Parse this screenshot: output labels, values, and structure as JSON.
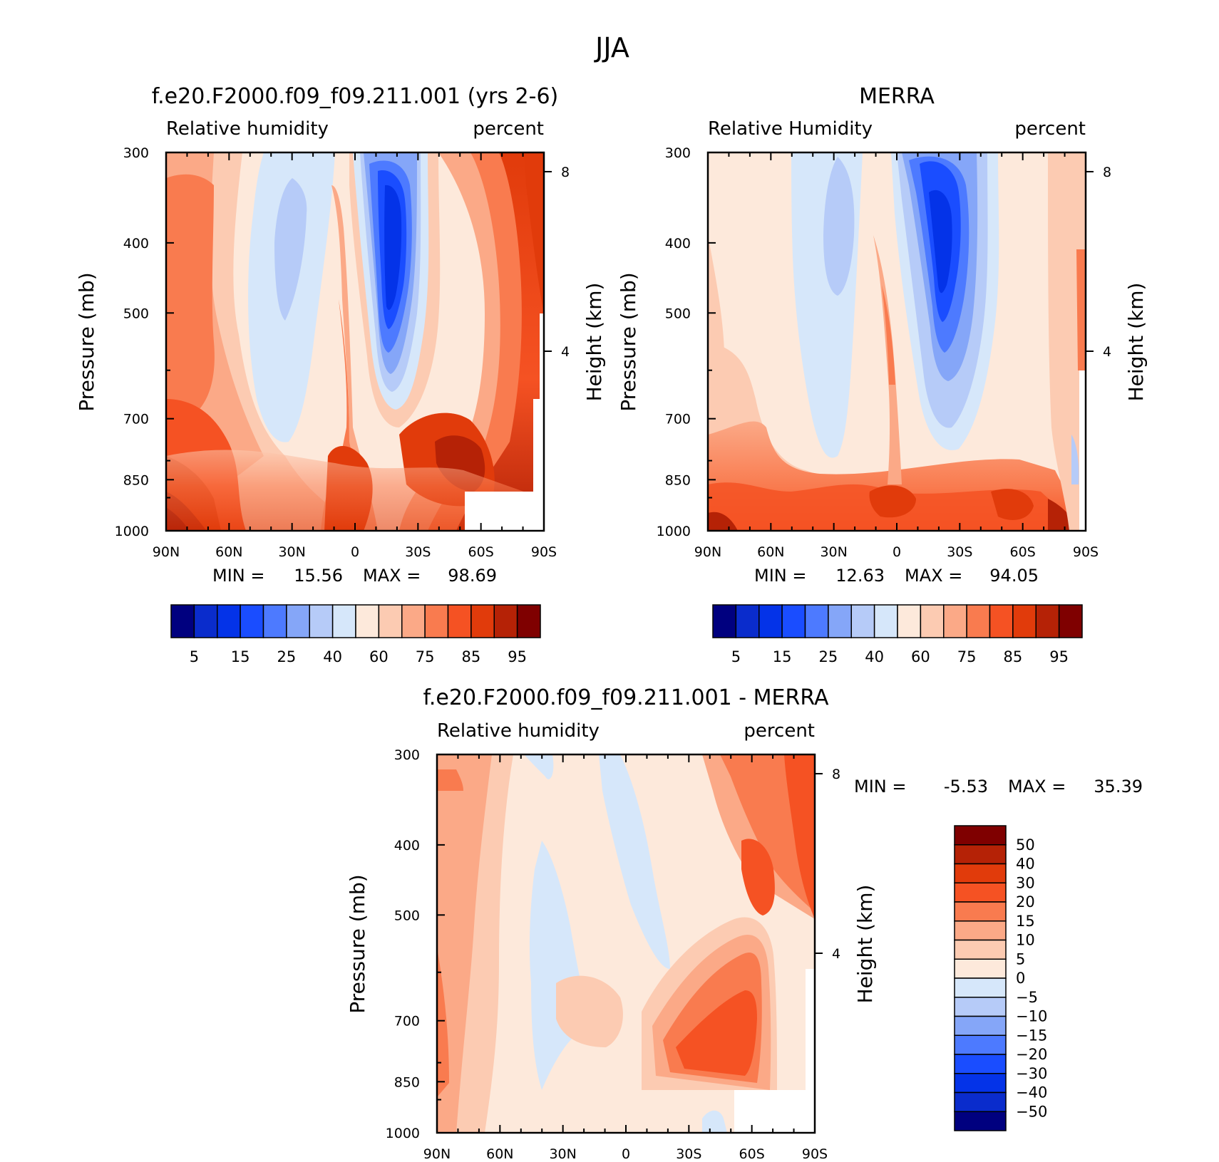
{
  "figure": {
    "title": "JJA"
  },
  "chart_data": [
    {
      "type": "heatmap",
      "id": "panel-model",
      "title": "f.e20.F2000.f09_f09.211.001 (yrs 2-6)",
      "left_label": "Relative humidity",
      "right_label": "percent",
      "xlabel": "",
      "ylabel": "Pressure (mb)",
      "y2label": "Height (km)",
      "x_ticks": [
        "90N",
        "60N",
        "30N",
        "0",
        "30S",
        "60S",
        "90S"
      ],
      "y_ticks": [
        "300",
        "400",
        "500",
        "700",
        "850",
        "1000"
      ],
      "y2_ticks": [
        "8",
        "4"
      ],
      "min_text": "MIN =",
      "min_value": "15.56",
      "max_text": "MAX =",
      "max_value": "98.69",
      "colorbar": {
        "orientation": "horizontal",
        "labels": [
          "5",
          "15",
          "25",
          "40",
          "60",
          "75",
          "85",
          "95"
        ],
        "colors": [
          "#00007f",
          "#0a2ccc",
          "#0433e8",
          "#1a4dff",
          "#4d7aff",
          "#85a6f8",
          "#b6cbf8",
          "#d6e7fa",
          "#fde9db",
          "#fccbb2",
          "#fba987",
          "#f97b4f",
          "#f55223",
          "#e13b0b",
          "#b52206",
          "#7f0000"
        ]
      }
    },
    {
      "type": "heatmap",
      "id": "panel-merra",
      "title": "MERRA",
      "left_label": "Relative Humidity",
      "right_label": "percent",
      "xlabel": "",
      "ylabel": "Pressure (mb)",
      "y2label": "Height (km)",
      "x_ticks": [
        "90N",
        "60N",
        "30N",
        "0",
        "30S",
        "60S",
        "90S"
      ],
      "y_ticks": [
        "300",
        "400",
        "500",
        "700",
        "850",
        "1000"
      ],
      "y2_ticks": [
        "8",
        "4"
      ],
      "min_text": "MIN =",
      "min_value": "12.63",
      "max_text": "MAX =",
      "max_value": "94.05",
      "colorbar": {
        "orientation": "horizontal",
        "labels": [
          "5",
          "15",
          "25",
          "40",
          "60",
          "75",
          "85",
          "95"
        ],
        "colors": [
          "#00007f",
          "#0a2ccc",
          "#0433e8",
          "#1a4dff",
          "#4d7aff",
          "#85a6f8",
          "#b6cbf8",
          "#d6e7fa",
          "#fde9db",
          "#fccbb2",
          "#fba987",
          "#f97b4f",
          "#f55223",
          "#e13b0b",
          "#b52206",
          "#7f0000"
        ]
      }
    },
    {
      "type": "heatmap",
      "id": "panel-diff",
      "title": "f.e20.F2000.f09_f09.211.001 - MERRA",
      "left_label": "Relative humidity",
      "right_label": "percent",
      "xlabel": "",
      "ylabel": "Pressure (mb)",
      "y2label": "Height (km)",
      "x_ticks": [
        "90N",
        "60N",
        "30N",
        "0",
        "30S",
        "60S",
        "90S"
      ],
      "y_ticks": [
        "300",
        "400",
        "500",
        "700",
        "850",
        "1000"
      ],
      "y2_ticks": [
        "8",
        "4"
      ],
      "min_text": "MIN =",
      "min_value": "-5.53",
      "max_text": "MAX =",
      "max_value": "35.39",
      "colorbar": {
        "orientation": "vertical",
        "labels": [
          "50",
          "40",
          "30",
          "20",
          "15",
          "10",
          "5",
          "0",
          "-5",
          "-10",
          "-15",
          "-20",
          "-30",
          "-40",
          "-50"
        ],
        "colors": [
          "#7f0000",
          "#b52206",
          "#e13b0b",
          "#f55223",
          "#f97b4f",
          "#fba987",
          "#fccbb2",
          "#fde9db",
          "#d6e7fa",
          "#b6cbf8",
          "#85a6f8",
          "#4d7aff",
          "#1a4dff",
          "#0433e8",
          "#0a2ccc",
          "#00007f"
        ]
      }
    }
  ]
}
